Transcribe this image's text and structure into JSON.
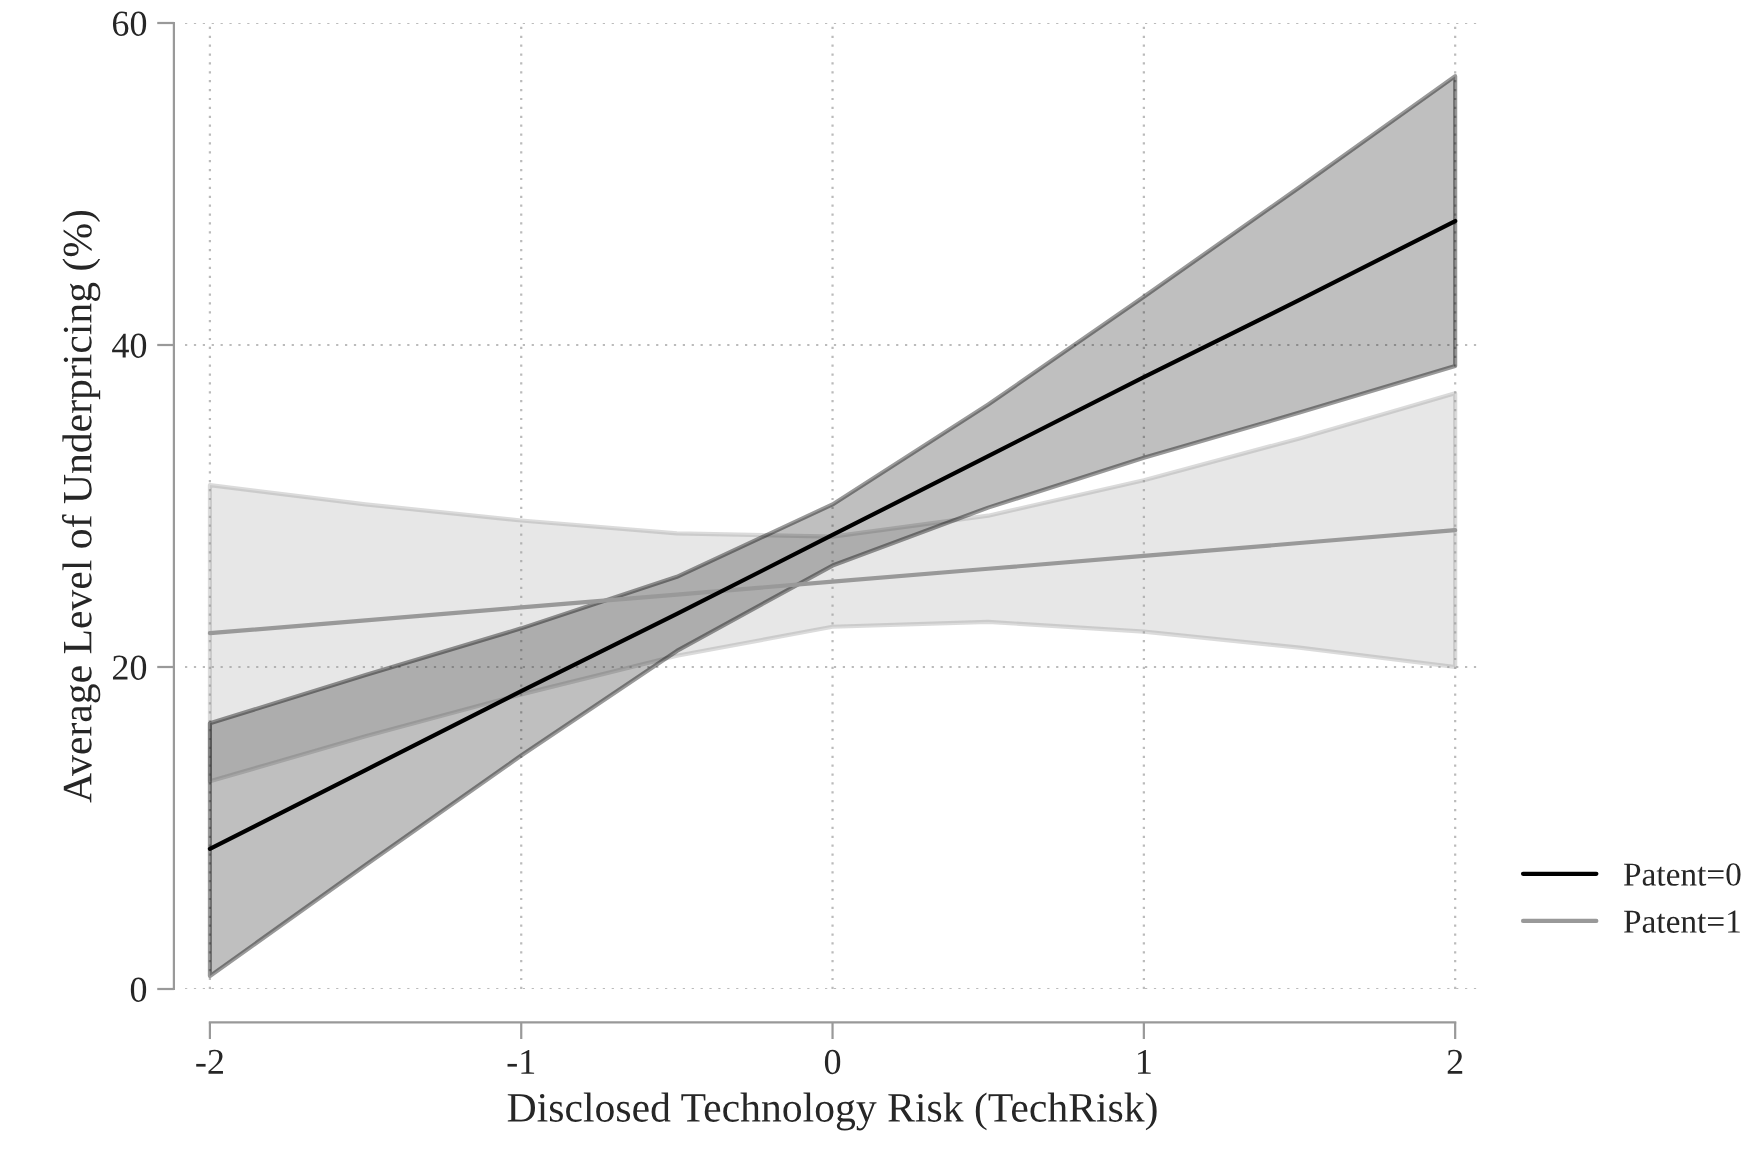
{
  "chart_data": {
    "type": "line",
    "xlabel": "Disclosed Technology Risk (TechRisk)",
    "ylabel": "Average Level of Underpricing (%)",
    "x": [
      -2,
      -1.5,
      -1,
      -0.5,
      0,
      0.5,
      1,
      1.5,
      2
    ],
    "series": [
      {
        "name": "Patent=0",
        "color": "#000000",
        "values": [
          8.7,
          13.6,
          18.5,
          23.3,
          28.2,
          33.1,
          38.0,
          42.8,
          47.7
        ],
        "lower": [
          0.8,
          7.7,
          14.5,
          21.0,
          26.3,
          29.9,
          33.0,
          35.8,
          38.7
        ],
        "upper": [
          16.5,
          19.5,
          22.4,
          25.6,
          30.1,
          36.3,
          43.0,
          49.8,
          56.7
        ]
      },
      {
        "name": "Patent=1",
        "color": "#999999",
        "values": [
          22.1,
          22.9,
          23.7,
          24.5,
          25.3,
          26.1,
          26.9,
          27.7,
          28.5
        ],
        "lower": [
          12.9,
          15.7,
          18.3,
          20.7,
          22.5,
          22.8,
          22.2,
          21.2,
          20.0
        ],
        "upper": [
          31.3,
          30.1,
          29.1,
          28.3,
          28.1,
          29.4,
          31.6,
          34.2,
          37.0
        ]
      }
    ],
    "xlim": [
      -2,
      2
    ],
    "xticks": [
      -2,
      -1,
      0,
      1,
      2
    ],
    "ylim": [
      0,
      60
    ],
    "yticks": [
      0,
      20,
      40,
      60
    ],
    "grid": true,
    "legend": "bottom right",
    "line_style": "solid",
    "marker": "none"
  }
}
